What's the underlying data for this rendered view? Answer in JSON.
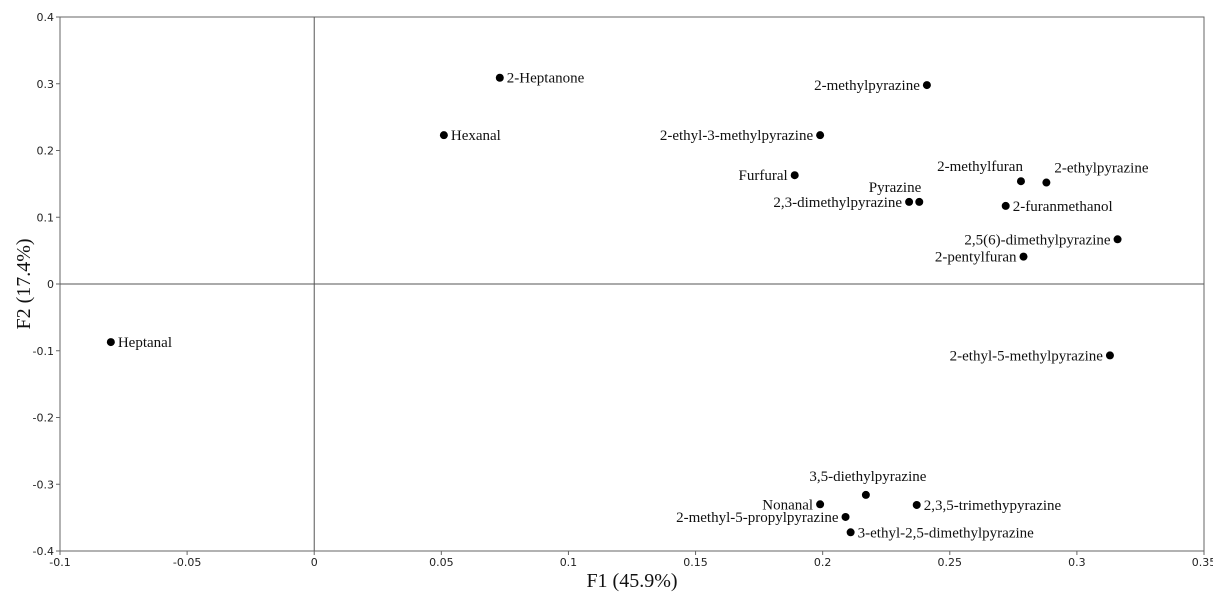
{
  "chart_data": {
    "type": "scatter",
    "title": "",
    "xlabel": "F1 (45.9%)",
    "ylabel": "F2 (17.4%)",
    "xlim": [
      -0.1,
      0.35
    ],
    "ylim": [
      -0.4,
      0.4
    ],
    "x_ticks": [
      -0.1,
      -0.05,
      0,
      0.05,
      0.1,
      0.15,
      0.2,
      0.25,
      0.3,
      0.35
    ],
    "x_tick_labels": [
      "-0.1",
      "-0.05",
      "0",
      "0.05",
      "0.1",
      "0.15",
      "0.2",
      "0.25",
      "0.3",
      "0.35"
    ],
    "y_ticks": [
      -0.4,
      -0.3,
      -0.2,
      -0.1,
      0,
      0.1,
      0.2,
      0.3,
      0.4
    ],
    "y_tick_labels": [
      "-0.4",
      "-0.3",
      "-0.2",
      "-0.1",
      "0",
      "0.1",
      "0.2",
      "0.3",
      "0.4"
    ],
    "grid": false,
    "zero_lines": true,
    "points": [
      {
        "label": "2-Heptanone",
        "x": 0.073,
        "y": 0.309,
        "anchor": "right"
      },
      {
        "label": "Hexanal",
        "x": 0.051,
        "y": 0.223,
        "anchor": "right"
      },
      {
        "label": "Heptanal",
        "x": -0.08,
        "y": -0.087,
        "anchor": "right"
      },
      {
        "label": "2-methylpyrazine",
        "x": 0.241,
        "y": 0.298,
        "anchor": "left"
      },
      {
        "label": "2-ethyl-3-methylpyrazine",
        "x": 0.199,
        "y": 0.223,
        "anchor": "left"
      },
      {
        "label": "Furfural",
        "x": 0.189,
        "y": 0.163,
        "anchor": "left"
      },
      {
        "label": "2-methylfuran",
        "x": 0.278,
        "y": 0.154,
        "anchor": "above-left"
      },
      {
        "label": "2-ethylpyrazine",
        "x": 0.288,
        "y": 0.152,
        "anchor": "above-right"
      },
      {
        "label": "Pyrazine",
        "x": 0.238,
        "y": 0.123,
        "anchor": "above-left"
      },
      {
        "label": "2,3-dimethylpyrazine",
        "x": 0.234,
        "y": 0.123,
        "anchor": "left"
      },
      {
        "label": "2-furanmethanol",
        "x": 0.272,
        "y": 0.117,
        "anchor": "right"
      },
      {
        "label": "2,5(6)-dimethylpyrazine",
        "x": 0.316,
        "y": 0.067,
        "anchor": "left"
      },
      {
        "label": "2-pentylfuran",
        "x": 0.279,
        "y": 0.041,
        "anchor": "left"
      },
      {
        "label": "2-ethyl-5-methylpyrazine",
        "x": 0.313,
        "y": -0.107,
        "anchor": "left"
      },
      {
        "label": "3,5-diethylpyrazine",
        "x": 0.217,
        "y": -0.316,
        "anchor": "above"
      },
      {
        "label": "Nonanal",
        "x": 0.199,
        "y": -0.33,
        "anchor": "left"
      },
      {
        "label": "2,3,5-trimethypyrazine",
        "x": 0.237,
        "y": -0.331,
        "anchor": "right"
      },
      {
        "label": "2-methyl-5-propylpyrazine",
        "x": 0.209,
        "y": -0.349,
        "anchor": "left"
      },
      {
        "label": "3-ethyl-2,5-dimethylpyrazine",
        "x": 0.211,
        "y": -0.372,
        "anchor": "right"
      }
    ],
    "colors": {
      "point": "#000000",
      "axis": "#555555",
      "text": "#111111"
    }
  }
}
